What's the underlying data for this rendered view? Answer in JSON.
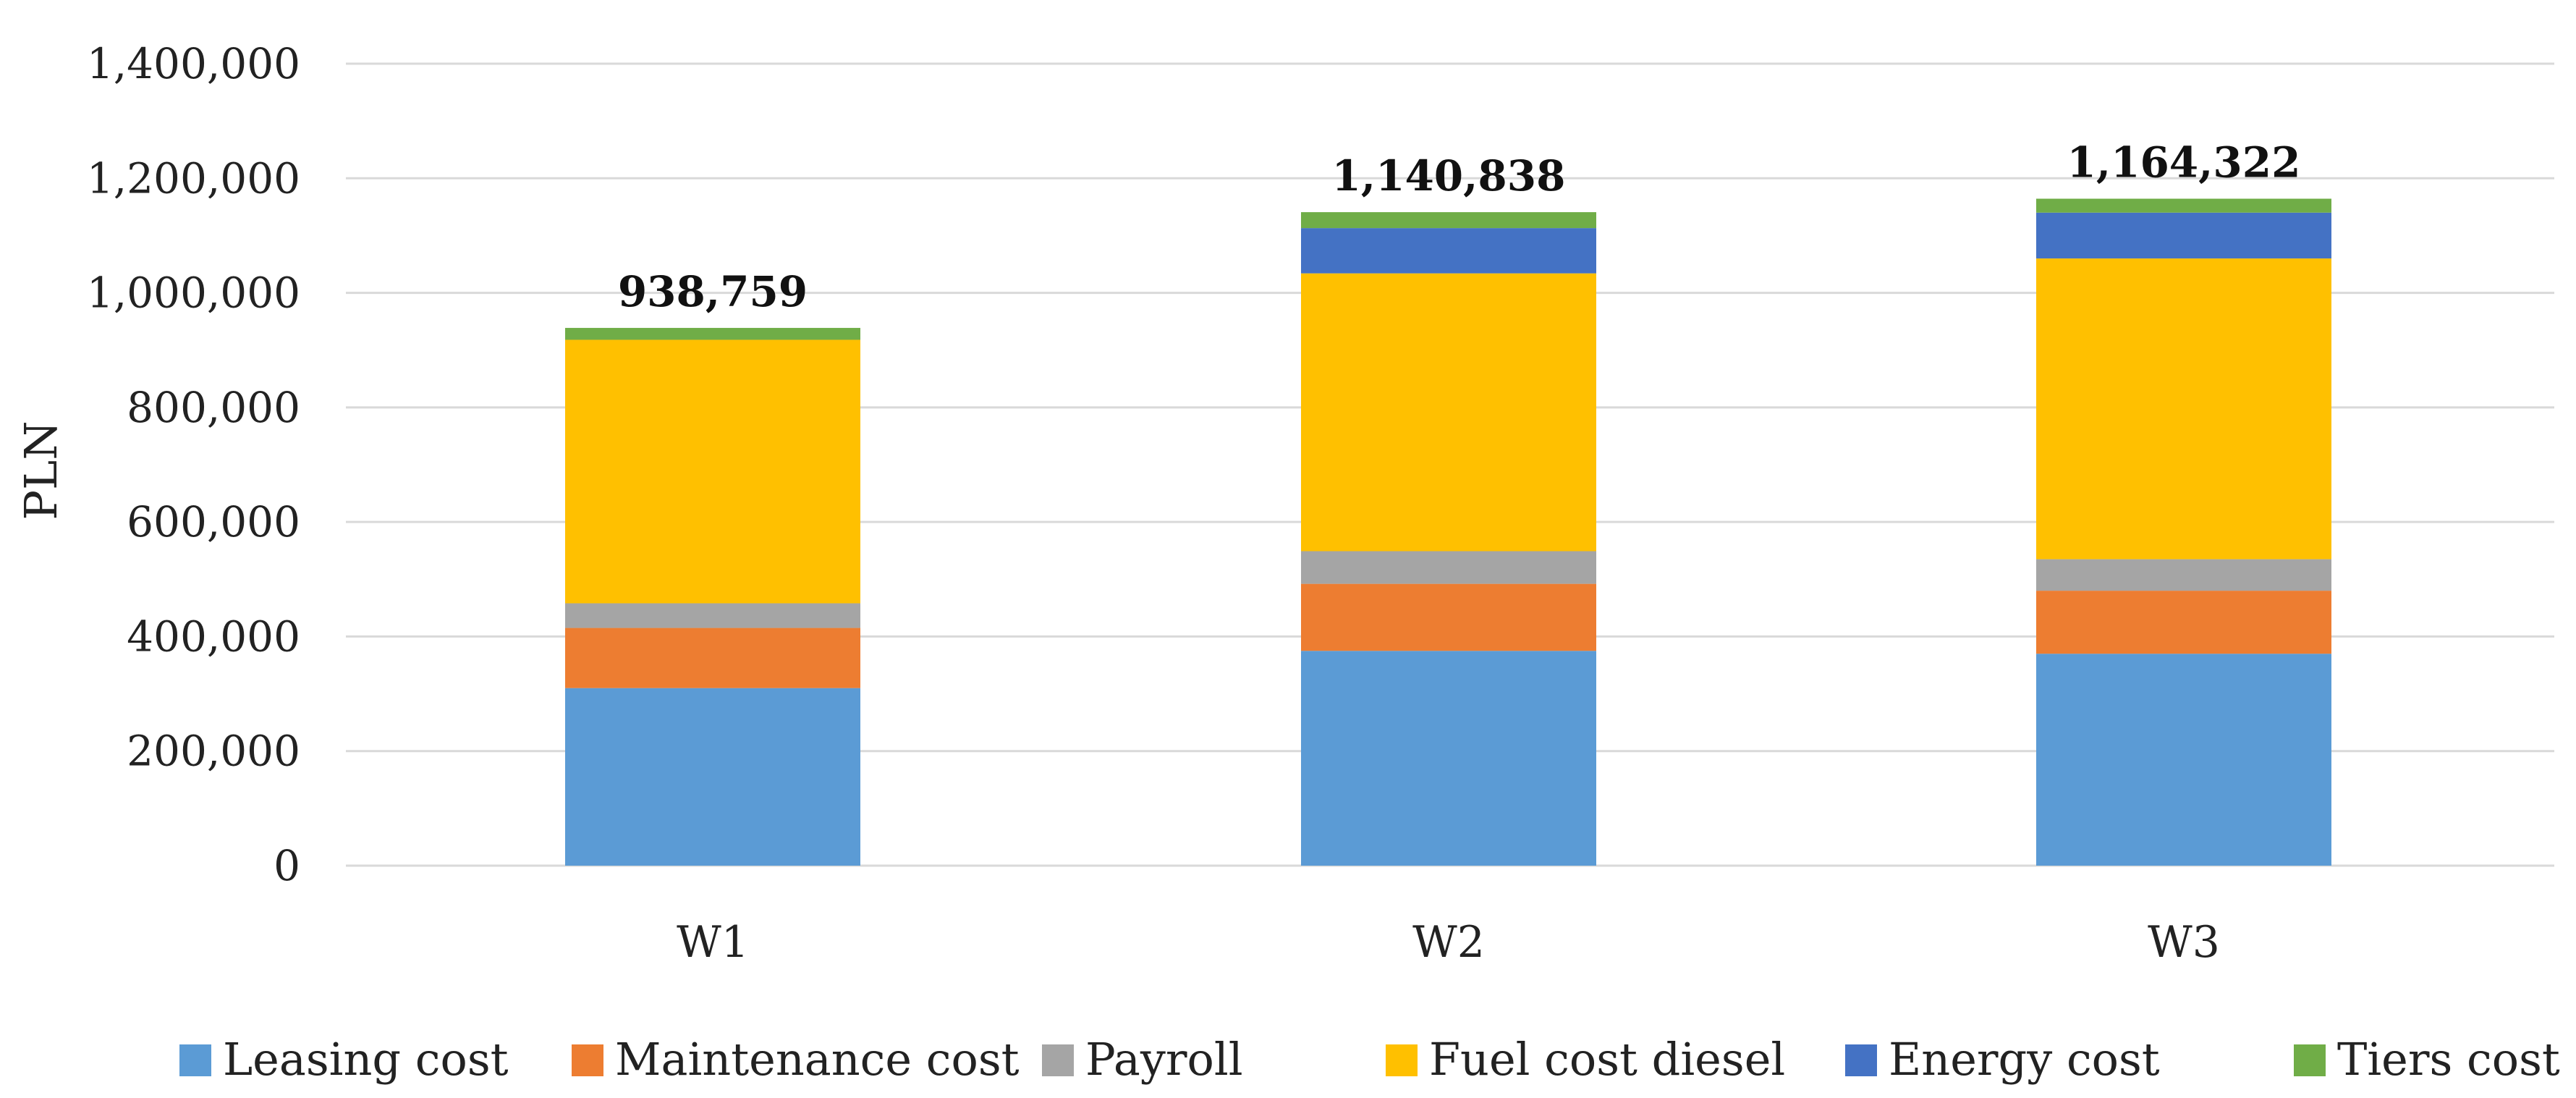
{
  "chart_data": {
    "type": "bar",
    "stacked": true,
    "title": "",
    "xlabel": "",
    "ylabel": "PLN",
    "ylim": [
      0,
      1400000
    ],
    "yticks": [
      0,
      200000,
      400000,
      600000,
      800000,
      1000000,
      1200000,
      1400000
    ],
    "ytick_labels": [
      "0",
      "200,000",
      "400,000",
      "600,000",
      "800,000",
      "1,000,000",
      "1,200,000",
      "1,400,000"
    ],
    "grid": true,
    "legend_position": "bottom",
    "categories": [
      "W1",
      "W2",
      "W3"
    ],
    "series": [
      {
        "name": "Leasing cost",
        "color": "#5B9BD5",
        "values": [
          310000,
          375000,
          370000
        ]
      },
      {
        "name": "Maintenance cost",
        "color": "#ED7D31",
        "values": [
          105000,
          117000,
          110000
        ]
      },
      {
        "name": "Payroll",
        "color": "#A5A5A5",
        "values": [
          43000,
          57000,
          55000
        ]
      },
      {
        "name": "Fuel cost diesel",
        "color": "#FFC000",
        "values": [
          460000,
          485000,
          525000
        ]
      },
      {
        "name": "Energy cost",
        "color": "#4472C4",
        "values": [
          0,
          79000,
          80000
        ]
      },
      {
        "name": "Tiers cost",
        "color": "#70AD47",
        "values": [
          20759,
          27838,
          24322
        ]
      }
    ],
    "totals": [
      938759,
      1140838,
      1164322
    ],
    "total_labels": [
      "938,759",
      "1,140,838",
      "1,164,322"
    ]
  }
}
